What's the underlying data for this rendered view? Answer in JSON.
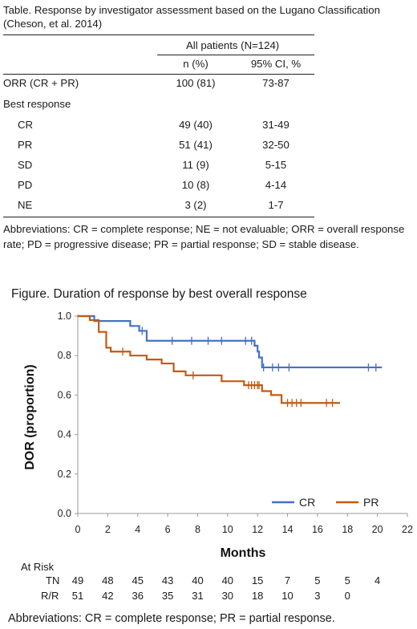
{
  "table": {
    "caption_line1": "Table. Response by investigator assessment based on the Lugano Classification",
    "caption_line2": "(Cheson, et al. 2014)",
    "group_header": "All patients (N=124)",
    "col_n": "n (%)",
    "col_ci": "95% CI, %",
    "orr": {
      "label": "ORR (CR + PR)",
      "n": "100 (81)",
      "ci": "73-87"
    },
    "best_response_label": "Best response",
    "rows": [
      {
        "label": "CR",
        "n": "49 (40)",
        "ci": "31-49"
      },
      {
        "label": "PR",
        "n": "51 (41)",
        "ci": "32-50"
      },
      {
        "label": "SD",
        "n": "11 (9)",
        "ci": "5-15"
      },
      {
        "label": "PD",
        "n": "10 (8)",
        "ci": "4-14"
      },
      {
        "label": "NE",
        "n": "3 (2)",
        "ci": "1-7"
      }
    ],
    "abbreviations": "Abbreviations: CR = complete response; NE = not evaluable; ORR = overall response rate; PD = progressive disease; PR = partial response; SD = stable disease."
  },
  "figure": {
    "title": "Figure. Duration of response by best overall response",
    "abbreviations": "Abbreviations: CR = complete response; PR = partial response."
  },
  "chart_data": {
    "type": "line",
    "subtype": "kaplan-meier step",
    "xlabel": "Months",
    "ylabel": "DOR (proportion)",
    "xlim": [
      0,
      22
    ],
    "ylim": [
      0,
      1
    ],
    "xticks": [
      "0",
      "2",
      "4",
      "6",
      "8",
      "10",
      "12",
      "14",
      "16",
      "18",
      "20",
      "22"
    ],
    "yticks": [
      "0.0",
      "0.2",
      "0.4",
      "0.6",
      "0.8",
      "1.0"
    ],
    "grid": false,
    "legend_position": "bottom-right",
    "series": [
      {
        "name": "CR",
        "color": "#4472c4",
        "steps": [
          [
            0,
            1.0
          ],
          [
            1.1,
            0.975
          ],
          [
            3.5,
            0.95
          ],
          [
            4.1,
            0.925
          ],
          [
            4.6,
            0.875
          ],
          [
            11.8,
            0.85
          ],
          [
            12.0,
            0.82
          ],
          [
            12.1,
            0.79
          ],
          [
            12.3,
            0.74
          ],
          [
            20.3,
            0.74
          ]
        ],
        "censors": [
          [
            4.3,
            0.925
          ],
          [
            6.3,
            0.875
          ],
          [
            7.6,
            0.875
          ],
          [
            8.7,
            0.875
          ],
          [
            9.6,
            0.875
          ],
          [
            11.2,
            0.875
          ],
          [
            11.6,
            0.875
          ],
          [
            12.4,
            0.74
          ],
          [
            13.0,
            0.74
          ],
          [
            13.4,
            0.74
          ],
          [
            14.1,
            0.74
          ],
          [
            19.4,
            0.74
          ],
          [
            19.9,
            0.74
          ]
        ]
      },
      {
        "name": "PR",
        "color": "#c55a11",
        "steps": [
          [
            0,
            1.0
          ],
          [
            0.8,
            0.98
          ],
          [
            1.4,
            0.92
          ],
          [
            1.9,
            0.84
          ],
          [
            2.2,
            0.82
          ],
          [
            3.5,
            0.8
          ],
          [
            4.6,
            0.78
          ],
          [
            5.6,
            0.76
          ],
          [
            6.4,
            0.72
          ],
          [
            7.2,
            0.7
          ],
          [
            9.6,
            0.67
          ],
          [
            11.1,
            0.65
          ],
          [
            12.3,
            0.62
          ],
          [
            12.9,
            0.6
          ],
          [
            13.6,
            0.56
          ],
          [
            17.5,
            0.56
          ]
        ],
        "censors": [
          [
            3.0,
            0.82
          ],
          [
            7.7,
            0.7
          ],
          [
            11.4,
            0.65
          ],
          [
            11.6,
            0.65
          ],
          [
            11.8,
            0.65
          ],
          [
            12.0,
            0.65
          ],
          [
            12.1,
            0.65
          ],
          [
            14.0,
            0.56
          ],
          [
            14.3,
            0.56
          ],
          [
            14.6,
            0.56
          ],
          [
            14.9,
            0.56
          ],
          [
            16.6,
            0.56
          ],
          [
            17.0,
            0.56
          ]
        ]
      }
    ],
    "at_risk": {
      "title": "At Risk",
      "times": [
        0,
        2,
        4,
        6,
        8,
        10,
        12,
        14,
        16,
        18,
        20
      ],
      "rows": [
        {
          "label": "TN",
          "values": [
            "49",
            "48",
            "45",
            "43",
            "40",
            "40",
            "15",
            "7",
            "5",
            "5",
            "4"
          ]
        },
        {
          "label": "R/R",
          "values": [
            "51",
            "42",
            "36",
            "35",
            "31",
            "30",
            "18",
            "10",
            "3",
            "0",
            ""
          ]
        }
      ]
    }
  }
}
